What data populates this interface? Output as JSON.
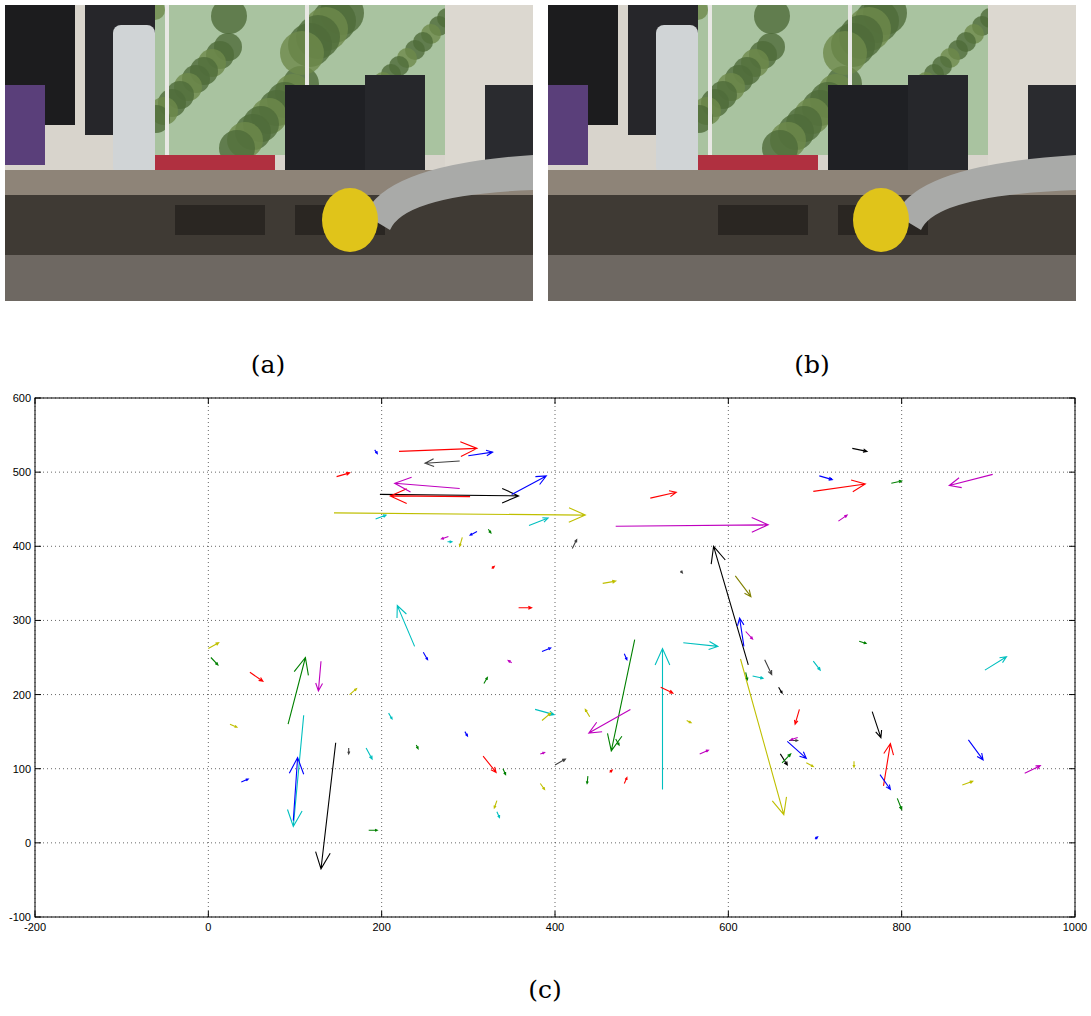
{
  "images": [
    {
      "label": "(a)"
    },
    {
      "label": "(b)"
    }
  ],
  "chart_data": {
    "type": "quiver",
    "label": "(c)",
    "xlim": [
      -200,
      1000
    ],
    "xticks": [
      -200,
      0,
      200,
      400,
      600,
      800,
      1000
    ],
    "ylim": [
      -100,
      600
    ],
    "yticks": [
      -100,
      0,
      100,
      200,
      300,
      400,
      500,
      600
    ],
    "grid": true,
    "x": [
      145,
      470,
      198,
      302,
      290,
      350,
      220,
      290,
      300,
      698,
      905,
      743,
      705,
      510,
      727,
      193,
      370,
      623,
      614,
      524,
      492,
      487,
      548,
      522,
      238,
      92,
      130,
      110,
      98,
      147,
      48,
      3,
      0,
      25,
      38,
      185,
      162,
      182,
      163,
      208,
      248,
      240,
      327,
      358,
      318,
      350,
      385,
      377,
      385,
      317,
      296,
      383,
      340,
      383,
      400,
      333,
      333,
      438,
      463,
      480,
      470,
      440,
      480,
      552,
      567,
      455,
      420,
      293,
      277,
      310,
      323,
      276,
      545,
      608,
      618,
      620,
      642,
      658,
      628,
      620,
      682,
      670,
      680,
      668,
      660,
      662,
      690,
      698,
      751,
      700,
      766,
      745,
      779,
      775,
      795,
      877,
      870,
      942,
      896,
      148,
      192,
      788
    ],
    "y": [
      445,
      427,
      470,
      467,
      478,
      470,
      528,
      515,
      522,
      474,
      497,
      532,
      495,
      465,
      434,
      437,
      428,
      240,
      248,
      72,
      274,
      180,
      270,
      210,
      265,
      160,
      245,
      172,
      30,
      135,
      230,
      250,
      262,
      160,
      82,
      17,
      128,
      128,
      200,
      175,
      257,
      132,
      370,
      317,
      215,
      243,
      258,
      180,
      165,
      117,
      150,
      120,
      100,
      80,
      105,
      57,
      42,
      90,
      95,
      80,
      140,
      170,
      255,
      165,
      120,
      350,
      397,
      412,
      413,
      420,
      423,
      406,
      367,
      360,
      265,
      285,
      247,
      210,
      225,
      230,
      180,
      138,
      142,
      137,
      120,
      108,
      108,
      245,
      272,
      5,
      177,
      110,
      77,
      92,
      60,
      139,
      78,
      94,
      233,
      494,
      530,
      485
    ],
    "u": [
      290,
      176,
      160,
      -92,
      -75,
      40,
      90,
      -40,
      28,
      60,
      -50,
      17,
      15,
      30,
      10,
      12,
      22,
      -40,
      50,
      0,
      -27,
      -48,
      40,
      14,
      -20,
      20,
      -3,
      -12,
      5,
      -17,
      15,
      8,
      12,
      8,
      8,
      10,
      0,
      7,
      8,
      4,
      5,
      2,
      3,
      15,
      4,
      -4,
      10,
      22,
      10,
      15,
      3,
      5,
      3,
      5,
      12,
      -3,
      3,
      -1,
      3,
      3,
      4,
      -5,
      3,
      5,
      10,
      15,
      5,
      -3,
      -8,
      -8,
      3,
      5,
      2,
      18,
      -5,
      8,
      8,
      4,
      12,
      2,
      -5,
      10,
      -8,
      22,
      8,
      10,
      8,
      8,
      8,
      3,
      10,
      0,
      8,
      12,
      5,
      17,
      12,
      18,
      25,
      15,
      3,
      12
    ],
    "v": [
      -3,
      2,
      -2,
      1,
      7,
      25,
      4,
      -3,
      5,
      10,
      -15,
      -4,
      -5,
      8,
      8,
      5,
      10,
      160,
      -210,
      190,
      -150,
      -32,
      -5,
      -8,
      55,
      90,
      -40,
      -150,
      85,
      -170,
      -12,
      -10,
      8,
      -4,
      4,
      0,
      -8,
      -15,
      8,
      -8,
      -10,
      -5,
      3,
      0,
      8,
      3,
      5,
      -7,
      10,
      -22,
      -6,
      2,
      -8,
      -8,
      8,
      -10,
      -8,
      -10,
      3,
      8,
      -8,
      10,
      -8,
      -3,
      5,
      3,
      12,
      -12,
      -3,
      -5,
      -5,
      0,
      -3,
      -28,
      38,
      -10,
      -20,
      -8,
      -3,
      -10,
      -20,
      0,
      -3,
      -23,
      -15,
      12,
      -5,
      -12,
      -3,
      3,
      -35,
      -8,
      57,
      -20,
      -15,
      -27,
      5,
      10,
      18,
      5,
      -5,
      3
    ],
    "colors": [
      "#bfbf00",
      "#bf00bf",
      "#000000",
      "#ff0000",
      "#bf00bf",
      "#0000ff",
      "#ff0000",
      "#404040",
      "#0000ff",
      "#ff0000",
      "#bf00bf",
      "#000000",
      "#0000ff",
      "#ff0000",
      "#bf00bf",
      "#00bfbf",
      "#00bfbf",
      "#000000",
      "#bfbf00",
      "#00bfbf",
      "#008000",
      "#bf00bf",
      "#00bfbf",
      "#ff0000",
      "#00bfbf",
      "#008000",
      "#bf00bf",
      "#00bfbf",
      "#0000ff",
      "#000000",
      "#ff0000",
      "#008000",
      "#bfbf00",
      "#bfbf00",
      "#0000ff",
      "#008000",
      "#404040",
      "#00bfbf",
      "#bfbf00",
      "#00bfbf",
      "#0000ff",
      "#008000",
      "#ff0000",
      "#ff0000",
      "#008000",
      "#bf00bf",
      "#0000ff",
      "#00bfbf",
      "#bfbf00",
      "#ff0000",
      "#0000ff",
      "#bf00bf",
      "#008000",
      "#bfbf00",
      "#404040",
      "#bfbf00",
      "#00bfbf",
      "#008000",
      "#ff0000",
      "#ff0000",
      "#008000",
      "#bfbf00",
      "#0000ff",
      "#bfbf00",
      "#bf00bf",
      "#bfbf00",
      "#404040",
      "#bfbf00",
      "#bf00bf",
      "#0000ff",
      "#008000",
      "#00bfbf",
      "#404040",
      "#808000",
      "#0000ff",
      "#bf00bf",
      "#404040",
      "#000000",
      "#00bfbf",
      "#008000",
      "#ff0000",
      "#404040",
      "#bf00bf",
      "#0000ff",
      "#000000",
      "#008000",
      "#bfbf00",
      "#00bfbf",
      "#008000",
      "#0000ff",
      "#000000",
      "#bfbf00",
      "#ff0000",
      "#0000ff",
      "#008000",
      "#0000ff",
      "#bfbf00",
      "#bf00bf",
      "#00bfbf",
      "#ff0000",
      "#0000ff",
      "#008000"
    ]
  }
}
